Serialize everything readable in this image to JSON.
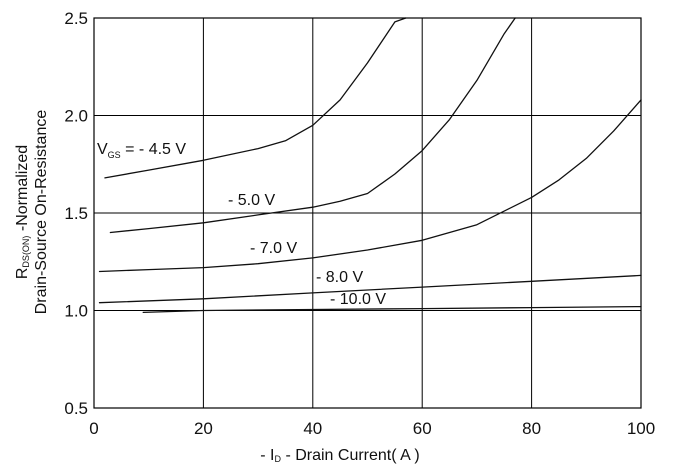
{
  "chart_data": {
    "type": "line",
    "xlabel": {
      "prefix": "- I",
      "sub": "D",
      "suffix": " - Drain Current( A )"
    },
    "ylabel": {
      "line1_prefix": "R",
      "line1_sub": "DS(ON)",
      "line1_suffix": " -Normalized",
      "line2": "Drain-Source On-Resistance"
    },
    "xlim": [
      0,
      100
    ],
    "ylim": [
      0.5,
      2.5
    ],
    "xticks": [
      0,
      20,
      40,
      60,
      80,
      100
    ],
    "yticks": [
      0.5,
      1.0,
      1.5,
      2.0,
      2.5
    ],
    "ytick_labels": [
      "0.5",
      "1.0",
      "1.5",
      "2.0",
      "2.5"
    ],
    "grid": true,
    "reference_line_y": 1.0,
    "series": [
      {
        "name": "- 4.5 V",
        "x": [
          2,
          10,
          20,
          30,
          35,
          40,
          45,
          50,
          55,
          57
        ],
        "y": [
          1.68,
          1.72,
          1.77,
          1.83,
          1.87,
          1.95,
          2.08,
          2.27,
          2.48,
          2.5
        ]
      },
      {
        "name": "- 5.0 V",
        "x": [
          3,
          10,
          20,
          30,
          40,
          45,
          50,
          55,
          60,
          65,
          70,
          75,
          77
        ],
        "y": [
          1.4,
          1.42,
          1.45,
          1.49,
          1.53,
          1.56,
          1.6,
          1.7,
          1.82,
          1.98,
          2.18,
          2.42,
          2.5
        ]
      },
      {
        "name": "- 7.0 V",
        "x": [
          1,
          10,
          20,
          30,
          40,
          50,
          60,
          70,
          80,
          85,
          90,
          95,
          100
        ],
        "y": [
          1.2,
          1.21,
          1.22,
          1.24,
          1.27,
          1.31,
          1.36,
          1.44,
          1.58,
          1.67,
          1.78,
          1.92,
          2.08
        ]
      },
      {
        "name": "- 8.0 V",
        "x": [
          1,
          20,
          40,
          60,
          80,
          100
        ],
        "y": [
          1.04,
          1.06,
          1.09,
          1.12,
          1.15,
          1.18
        ]
      },
      {
        "name": "- 10.0 V",
        "x": [
          9,
          20,
          40,
          60,
          80,
          100
        ],
        "y": [
          0.99,
          1.0,
          1.005,
          1.01,
          1.015,
          1.02
        ]
      }
    ],
    "annotations": [
      {
        "prefix": "V",
        "sub": "GS",
        "suffix": " = - 4.5 V"
      },
      {
        "text": "- 5.0 V"
      },
      {
        "text": "- 7.0 V"
      },
      {
        "text": "- 8.0 V"
      },
      {
        "text": "- 10.0 V"
      }
    ]
  }
}
